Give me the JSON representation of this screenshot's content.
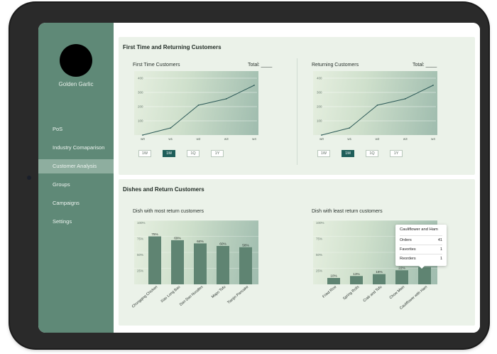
{
  "sidebar": {
    "brand": "Golden Garlic",
    "items": [
      {
        "label": "PoS",
        "active": false
      },
      {
        "label": "Industry Comaparison",
        "active": false
      },
      {
        "label": "Customer Analysis",
        "active": true
      },
      {
        "label": "Groups",
        "active": false
      },
      {
        "label": "Campaigns",
        "active": false
      },
      {
        "label": "Settings",
        "active": false
      }
    ]
  },
  "panel_customers": {
    "title": "First Time and Returning Customers",
    "left": {
      "title": "First Time Customers",
      "total": "Total: ____"
    },
    "right": {
      "title": "Returning Customers",
      "total": "Total: ____"
    },
    "ranges": [
      "1W",
      "1M",
      "1Q",
      "1Y"
    ],
    "active_range": "1M"
  },
  "panel_dishes": {
    "title": "Dishes and Return Customers",
    "left": {
      "title": "Dish with most return customers"
    },
    "right": {
      "title": "Dish with least return customers"
    },
    "tooltip": {
      "title": "Cauliflower and Ham",
      "rows": [
        {
          "label": "Orders",
          "value": "41"
        },
        {
          "label": "Favorites",
          "value": "1"
        },
        {
          "label": "Reorders",
          "value": "1"
        }
      ]
    }
  },
  "colors": {
    "accent": "#1e5e59",
    "sidebar": "#5f8977",
    "bar": "#5f8472",
    "line": "#2d5a58"
  },
  "chart_data": [
    {
      "type": "line",
      "title": "First Time Customers",
      "x": [
        "w0",
        "w1",
        "w2",
        "w3",
        "w4"
      ],
      "y_ticks": [
        "100",
        "200",
        "300",
        "400"
      ],
      "ylim": [
        0,
        450
      ],
      "series": [
        {
          "values": [
            0,
            50,
            210,
            255,
            350
          ]
        }
      ]
    },
    {
      "type": "line",
      "title": "Returning Customers",
      "x": [
        "w0",
        "w1",
        "w2",
        "w3",
        "w4"
      ],
      "y_ticks": [
        "100",
        "200",
        "300",
        "400"
      ],
      "ylim": [
        0,
        450
      ],
      "series": [
        {
          "values": [
            0,
            50,
            210,
            255,
            350
          ]
        }
      ]
    },
    {
      "type": "bar",
      "title": "Dish with most return customers",
      "categories": [
        "Chongqing Chicken",
        "Xiao Long Bao",
        "Dan Dan Noodles",
        "Mapo Tofu",
        "Tianjin Pancake"
      ],
      "values": [
        75,
        69,
        64,
        60,
        58
      ],
      "value_labels": [
        "75%",
        "69%",
        "64%",
        "60%",
        "58%"
      ],
      "y_ticks": [
        "25%",
        "50%",
        "75%",
        "100%"
      ],
      "ylim": [
        0,
        100
      ]
    },
    {
      "type": "bar",
      "title": "Dish with least return customers",
      "categories": [
        "Fried Rice",
        "Spring Rolls",
        "Crab and Tofu",
        "Chow Mein",
        "Cauliflower with Ham"
      ],
      "values": [
        10,
        13,
        16,
        22,
        27
      ],
      "value_labels": [
        "10%",
        "13%",
        "16%",
        "22%",
        "27%"
      ],
      "y_ticks": [
        "25%",
        "50%",
        "75%",
        "100%"
      ],
      "ylim": [
        0,
        100
      ]
    }
  ]
}
